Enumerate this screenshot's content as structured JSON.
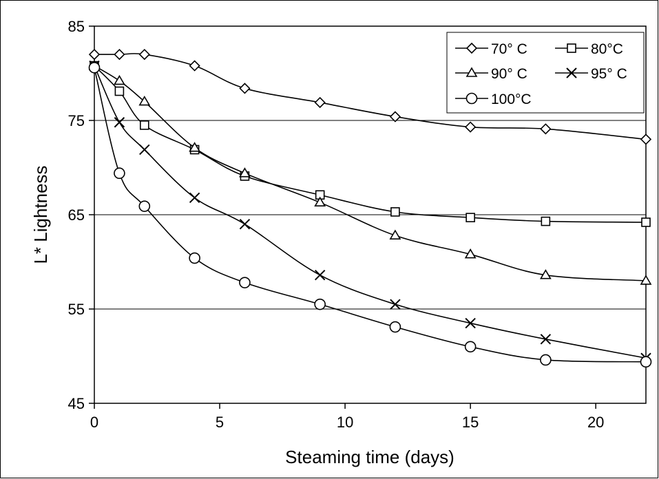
{
  "chart_data": {
    "type": "line",
    "title": "",
    "xlabel": "Steaming time (days)",
    "ylabel": "L* Lightness",
    "xlim": [
      0,
      22
    ],
    "ylim": [
      45,
      85
    ],
    "x_ticks": [
      0,
      5,
      10,
      15,
      20
    ],
    "y_ticks": [
      45,
      55,
      65,
      75,
      85
    ],
    "x_tick_labels": [
      "0",
      "5",
      "10",
      "15",
      "20"
    ],
    "y_tick_labels": [
      "45",
      "55",
      "65",
      "75",
      "85"
    ],
    "grid": "horizontal",
    "legend_position": "top-right",
    "series": [
      {
        "name": "70° C",
        "marker": "diamond",
        "color": "#000000",
        "x": [
          0,
          1,
          2,
          4,
          6,
          9,
          12,
          15,
          18,
          22
        ],
        "y": [
          82.0,
          82.0,
          82.0,
          80.8,
          78.4,
          76.9,
          75.4,
          74.3,
          74.1,
          73.0
        ]
      },
      {
        "name": "80°C",
        "marker": "square",
        "color": "#000000",
        "x": [
          0,
          1,
          2,
          4,
          6,
          9,
          12,
          15,
          18,
          22
        ],
        "y": [
          80.8,
          78.1,
          74.5,
          71.9,
          69.1,
          67.1,
          65.3,
          64.7,
          64.3,
          64.2
        ]
      },
      {
        "name": "90° C",
        "marker": "triangle",
        "color": "#000000",
        "x": [
          0,
          1,
          2,
          4,
          6,
          9,
          12,
          15,
          18,
          22
        ],
        "y": [
          80.8,
          79.2,
          77.0,
          72.1,
          69.4,
          66.3,
          62.8,
          60.8,
          58.6,
          58.0
        ]
      },
      {
        "name": "95° C",
        "marker": "x",
        "color": "#000000",
        "x": [
          0,
          1,
          2,
          4,
          6,
          9,
          12,
          15,
          18,
          22
        ],
        "y": [
          80.8,
          74.8,
          71.9,
          66.8,
          64.0,
          58.6,
          55.5,
          53.5,
          51.8,
          49.8
        ]
      },
      {
        "name": "100°C",
        "marker": "circle",
        "color": "#000000",
        "x": [
          0,
          1,
          2,
          4,
          6,
          9,
          12,
          15,
          18,
          22
        ],
        "y": [
          80.6,
          69.4,
          65.9,
          60.4,
          57.8,
          55.5,
          53.1,
          51.0,
          49.6,
          49.4
        ]
      }
    ]
  }
}
